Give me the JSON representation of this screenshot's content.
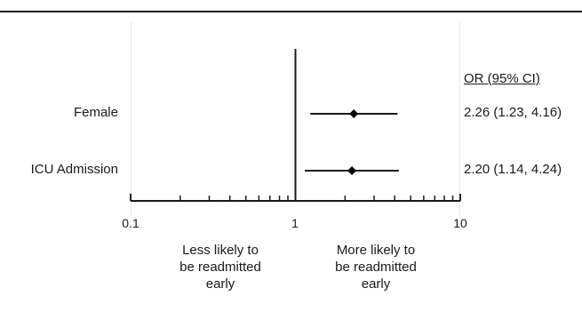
{
  "chart_data": {
    "type": "forest",
    "x_scale": "log",
    "xlim": [
      0.1,
      10
    ],
    "reference_line": 1,
    "x_ticks": [
      {
        "value": 0.1,
        "label": "0.1"
      },
      {
        "value": 1,
        "label": "1"
      },
      {
        "value": 10,
        "label": "10"
      }
    ],
    "ci_header": "OR (95% CI)",
    "rows": [
      {
        "label": "Female",
        "or": 2.26,
        "lower": 1.23,
        "upper": 4.16,
        "ci_text": "2.26 (1.23, 4.16)"
      },
      {
        "label": "ICU Admission",
        "or": 2.2,
        "lower": 1.14,
        "upper": 4.24,
        "ci_text": "2.20 (1.14, 4.24)"
      }
    ],
    "direction_labels": {
      "left": "Less likely to be readmitted early",
      "right": "More likely to be readmitted early"
    }
  }
}
